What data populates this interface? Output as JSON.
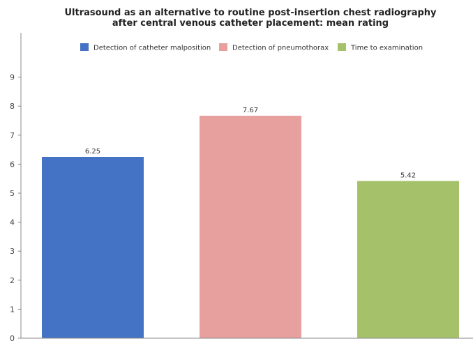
{
  "chart_data": {
    "type": "bar",
    "title": "Ultrasound as an alternative to routine post-insertion chest radiography after central venous catheter placement: mean rating",
    "title_lines": [
      "Ultrasound as an alternative to routine post-insertion chest radiography",
      "after central venous catheter placement: mean rating"
    ],
    "categories": [
      "Detection of catheter malposition",
      "Detection of pneumothorax",
      "Time to examination"
    ],
    "values": [
      6.25,
      7.67,
      5.42
    ],
    "value_labels": [
      "6.25",
      "7.67",
      "5.42"
    ],
    "colors": [
      "#4472c4",
      "#e8a09f",
      "#a5c26b"
    ],
    "xlabel": "",
    "ylabel": "",
    "ylim": [
      0,
      10.5
    ],
    "yticks": [
      0,
      1,
      2,
      3,
      4,
      5,
      6,
      7,
      8,
      9
    ],
    "grid": false,
    "legend_position": "top-center"
  }
}
